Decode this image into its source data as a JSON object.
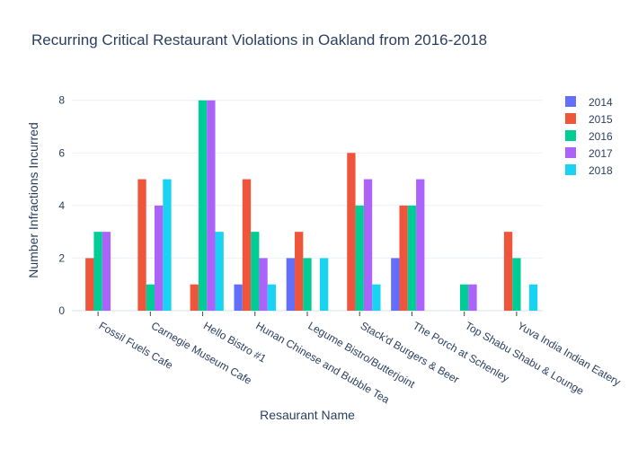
{
  "chart_data": {
    "type": "bar",
    "title": "Recurring Critical Restaurant Violations in Oakland from 2016-2018",
    "xlabel": "Resaurant Name",
    "ylabel": "Number Infractions Incurred",
    "ylim": [
      0,
      8.4
    ],
    "yticks": [
      0,
      2,
      4,
      6,
      8
    ],
    "grid": true,
    "legend_position": "top-right",
    "categories": [
      "Fossil Fuels Cafe",
      "Carnegie Museum Cafe",
      "Hello Bistro #1",
      "Hunan Chinese and Bubble Tea",
      "Legume Bistro/Butterjoint",
      "Stack'd Burgers & Beer",
      "The Porch at Schenley",
      "Top Shabu Shabu & Lounge",
      "Yuva India Indian Eatery"
    ],
    "series": [
      {
        "name": "2014",
        "color": "#636efa",
        "values": [
          0,
          0,
          0,
          1,
          2,
          0,
          2,
          0,
          0
        ]
      },
      {
        "name": "2015",
        "color": "#ef553b",
        "values": [
          2,
          5,
          1,
          5,
          3,
          6,
          4,
          0,
          3
        ]
      },
      {
        "name": "2016",
        "color": "#00cc96",
        "values": [
          3,
          1,
          8,
          3,
          2,
          4,
          4,
          1,
          2
        ]
      },
      {
        "name": "2017",
        "color": "#ab63fa",
        "values": [
          3,
          4,
          8,
          2,
          0,
          5,
          5,
          1,
          0
        ]
      },
      {
        "name": "2018",
        "color": "#19d3f3",
        "values": [
          0,
          5,
          3,
          1,
          2,
          1,
          0,
          0,
          1
        ]
      }
    ]
  }
}
